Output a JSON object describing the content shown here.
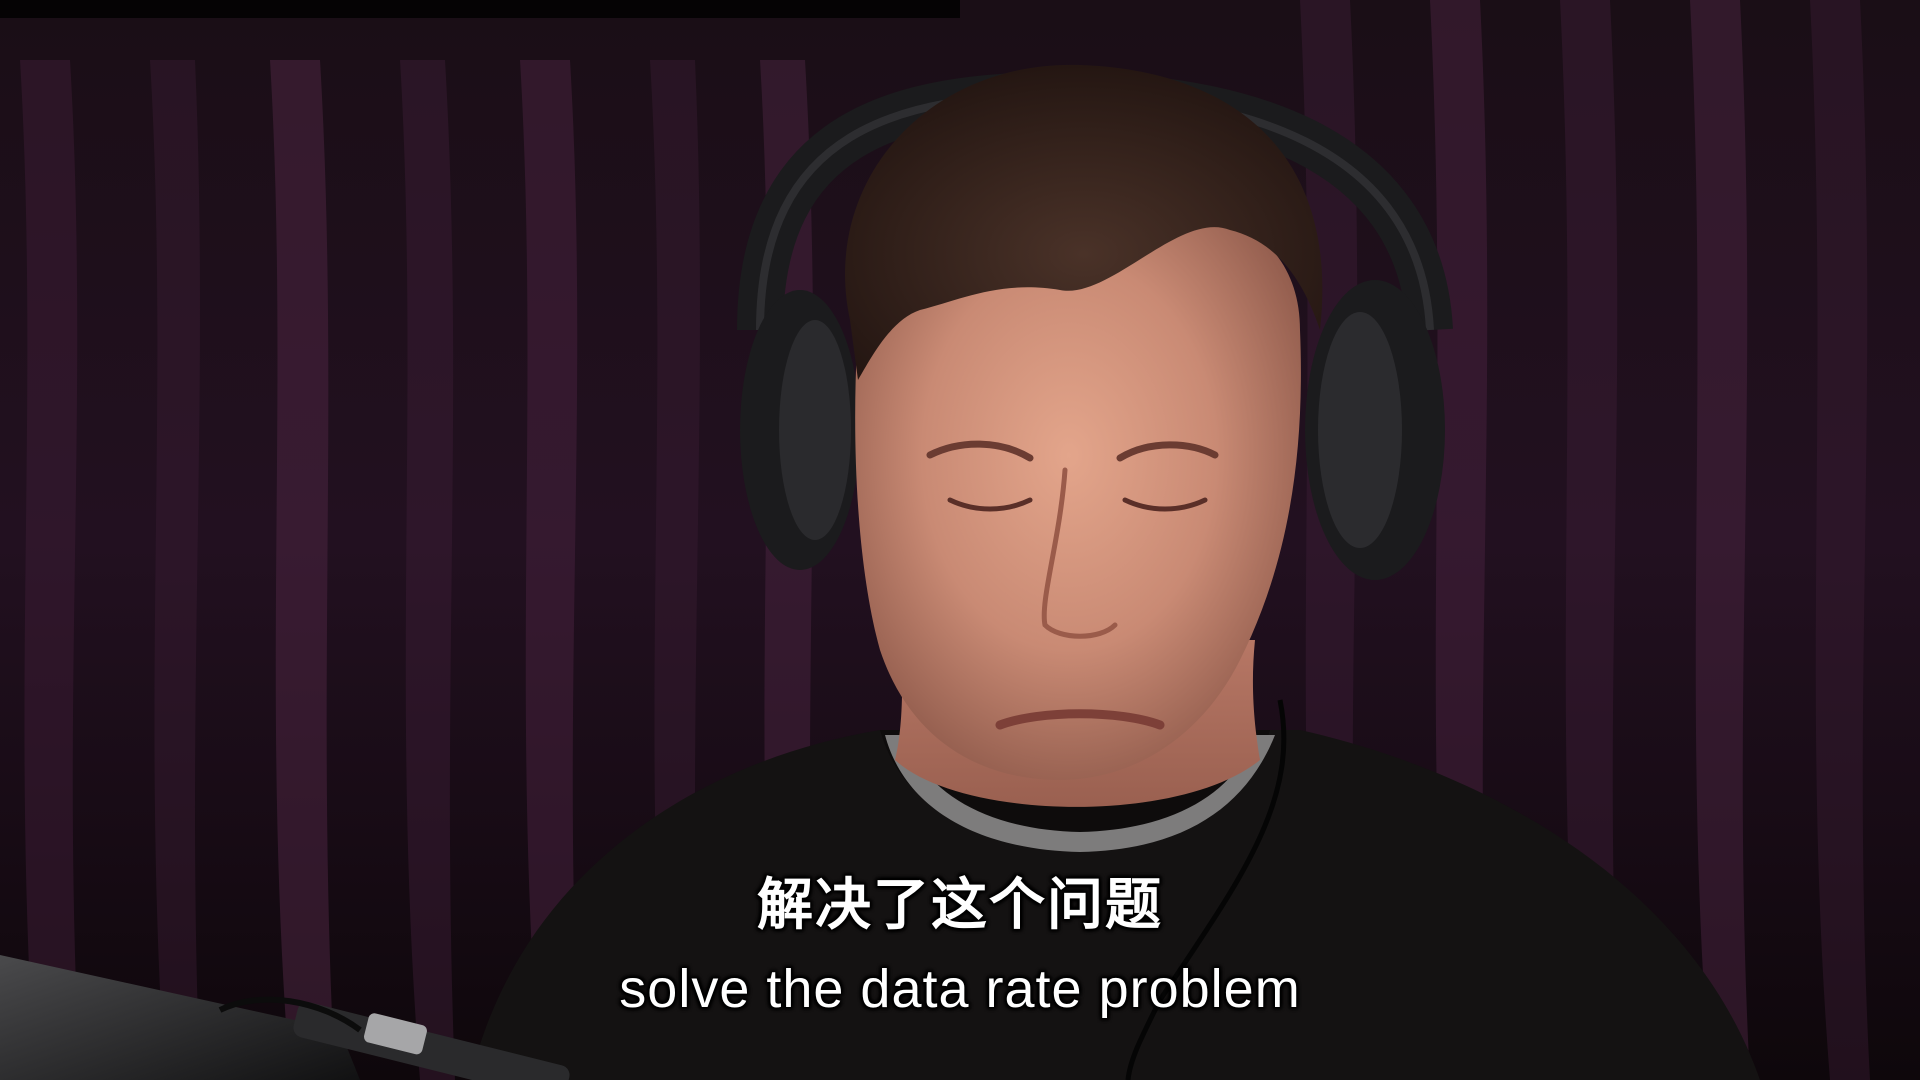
{
  "video": {
    "subtitle_chinese": "解决了这个问题",
    "subtitle_english": "solve the data rate problem"
  },
  "colors": {
    "curtain_dark": "#140a12",
    "curtain_fold": "#3a1c33",
    "shirt": "#141212",
    "skin": "#c98a74",
    "hair": "#3a2620",
    "headphones": "#1b1b1d",
    "subtitle_text": "#ffffff"
  },
  "icons": {
    "microphone": "microphone-icon",
    "headphones": "headphones-icon"
  }
}
